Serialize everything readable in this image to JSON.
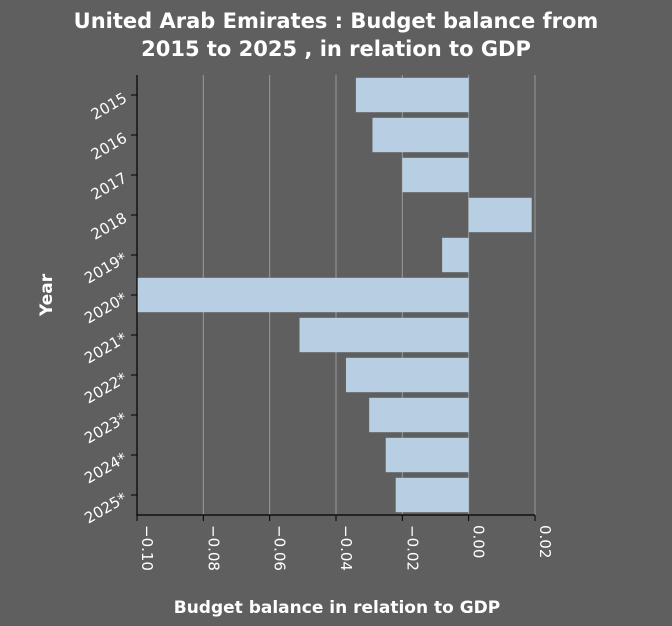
{
  "chart_data": {
    "type": "bar",
    "orientation": "horizontal",
    "title_lines": [
      "United Arab Emirates : Budget balance from",
      "2015 to 2025 , in relation to GDP"
    ],
    "xlabel": "Budget balance in relation to GDP",
    "ylabel": "Year",
    "categories": [
      "2015",
      "2016",
      "2017",
      "2018",
      "2019*",
      "2020*",
      "2021*",
      "2022*",
      "2023*",
      "2024*",
      "2025*"
    ],
    "values": [
      -0.034,
      -0.029,
      -0.02,
      0.019,
      -0.008,
      -0.1,
      -0.051,
      -0.037,
      -0.03,
      -0.025,
      -0.022
    ],
    "xlim": [
      -0.1,
      0.02
    ],
    "xticks": [
      -0.1,
      -0.08,
      -0.06,
      -0.04,
      -0.02,
      0.0,
      0.02
    ],
    "xtick_labels": [
      "−0.10",
      "−0.08",
      "−0.06",
      "−0.04",
      "−0.02",
      "0.00",
      "0.02"
    ],
    "grid": "vertical",
    "legend": "none",
    "colors": {
      "background": "#5f5f5f",
      "bar": "#b8cfe3",
      "grid": "#9a9a9a",
      "axis": "#000000",
      "text": "#ffffff"
    }
  }
}
